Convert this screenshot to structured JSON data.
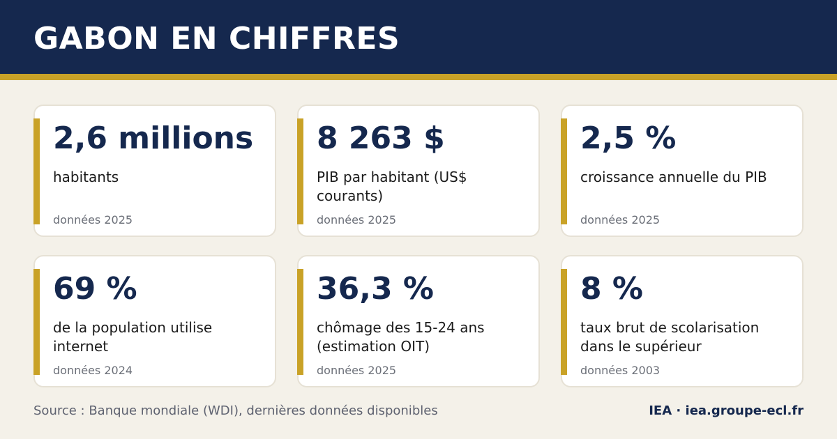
{
  "header": {
    "title": "GABON EN CHIFFRES"
  },
  "colors": {
    "navy": "#15284e",
    "gold": "#c9a227",
    "background": "#f4f1e9",
    "card": "#ffffff"
  },
  "cards": [
    {
      "value": "2,6 millions",
      "label": "habitants",
      "note": "données 2025"
    },
    {
      "value": "8 263 $",
      "label": "PIB par habitant (US$ courants)",
      "note": "données 2025"
    },
    {
      "value": "2,5 %",
      "label": "croissance annuelle du PIB",
      "note": "données 2025"
    },
    {
      "value": "69 %",
      "label": "de la population utilise internet",
      "note": "données 2024"
    },
    {
      "value": "36,3 %",
      "label": "chômage des 15-24 ans (estimation OIT)",
      "note": "données 2025"
    },
    {
      "value": "8 %",
      "label": "taux brut de scolarisation dans le supérieur",
      "note": "données 2003"
    }
  ],
  "footer": {
    "source": "Source : Banque mondiale (WDI), dernières données disponibles",
    "brand": "IEA · iea.groupe-ecl.fr"
  }
}
